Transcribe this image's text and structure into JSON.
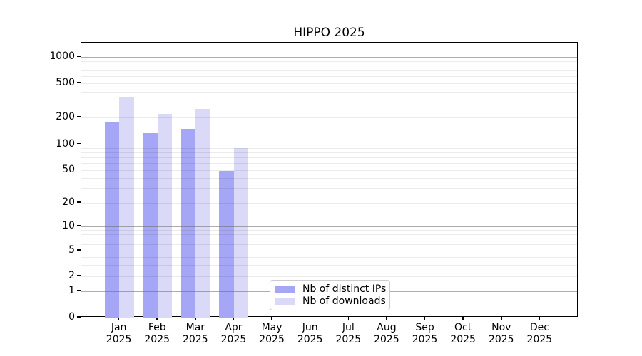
{
  "page": {
    "background": "#ffffff"
  },
  "chart_data": {
    "type": "bar",
    "title": "HIPPO 2025",
    "xlabel": "",
    "ylabel": "",
    "scale": "symlog",
    "grid": "both",
    "ylim": [
      0,
      1500
    ],
    "y_ticks": [
      0,
      1,
      2,
      5,
      10,
      20,
      50,
      100,
      200,
      500,
      1000
    ],
    "categories": [
      {
        "month": "Jan",
        "year": "2025"
      },
      {
        "month": "Feb",
        "year": "2025"
      },
      {
        "month": "Mar",
        "year": "2025"
      },
      {
        "month": "Apr",
        "year": "2025"
      },
      {
        "month": "May",
        "year": "2025"
      },
      {
        "month": "Jun",
        "year": "2025"
      },
      {
        "month": "Jul",
        "year": "2025"
      },
      {
        "month": "Aug",
        "year": "2025"
      },
      {
        "month": "Sep",
        "year": "2025"
      },
      {
        "month": "Oct",
        "year": "2025"
      },
      {
        "month": "Nov",
        "year": "2025"
      },
      {
        "month": "Dec",
        "year": "2025"
      }
    ],
    "series": [
      {
        "name": "Nb of distinct IPs",
        "color": "#a6a6f6",
        "values": [
          175,
          133,
          150,
          49,
          null,
          null,
          null,
          null,
          null,
          null,
          null,
          null
        ]
      },
      {
        "name": "Nb of downloads",
        "color": "#dadaf8",
        "values": [
          350,
          220,
          250,
          90,
          null,
          null,
          null,
          null,
          null,
          null,
          null,
          null
        ]
      }
    ],
    "legend_position": "lower center-left",
    "colors": {
      "major_grid": "#a9a9a9",
      "minor_grid": "#ededed",
      "axis": "#000000"
    }
  }
}
